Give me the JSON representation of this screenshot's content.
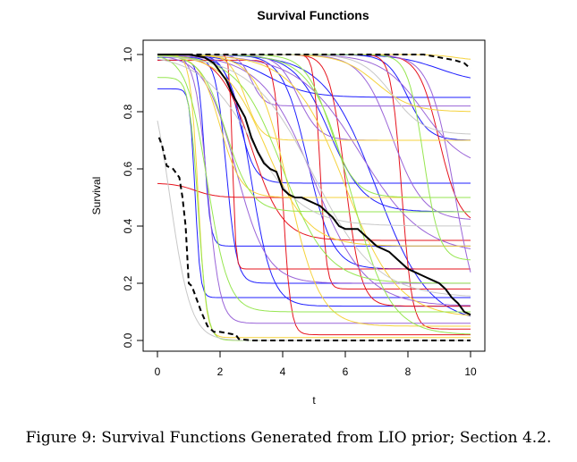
{
  "chart_data": {
    "type": "line",
    "title": "Survival Functions",
    "xlabel": "t",
    "ylabel": "Survival",
    "xlim": [
      0,
      10
    ],
    "ylim": [
      0,
      1
    ],
    "x_ticks": [
      0,
      2,
      4,
      6,
      8,
      10
    ],
    "y_ticks": [
      0.0,
      0.2,
      0.4,
      0.6,
      0.8,
      1.0
    ],
    "y_tick_labels": [
      "0.0",
      "0.2",
      "0.4",
      "0.6",
      "0.8",
      "1.0"
    ],
    "grid": false,
    "legend": "none",
    "colors": {
      "blue": "#1f1fff",
      "red": "#e6141e",
      "purple": "#9a64d8",
      "yellow": "#f5d23c",
      "green": "#96e650",
      "gray": "#c8c8c8",
      "black": "#000000"
    },
    "background_curve_pattern": {
      "description_params": "cy,x50,steep,floor",
      "curves": [
        {
          "c": "blue",
          "x50": 1.2,
          "k": 12,
          "top": 0.88,
          "floor": 0.15
        },
        {
          "c": "blue",
          "x50": 1.5,
          "k": 10,
          "top": 0.98,
          "floor": 0.33
        },
        {
          "c": "blue",
          "x50": 3.0,
          "k": 3,
          "top": 1.0,
          "floor": 0.12
        },
        {
          "c": "blue",
          "x50": 4.8,
          "k": 2.5,
          "top": 1.0,
          "floor": 0.25
        },
        {
          "c": "blue",
          "x50": 7.0,
          "k": 1.2,
          "top": 1.0,
          "floor": 0.06
        },
        {
          "c": "blue",
          "x50": 9.0,
          "k": 1.5,
          "top": 1.0,
          "floor": 0.9
        },
        {
          "c": "blue",
          "x50": 3.5,
          "k": 1.5,
          "top": 1.0,
          "floor": 0.85
        },
        {
          "c": "blue",
          "x50": 2.2,
          "k": 6,
          "top": 0.99,
          "floor": 0.2
        },
        {
          "c": "blue",
          "x50": 5.5,
          "k": 1.8,
          "top": 1.0,
          "floor": 0.45
        },
        {
          "c": "blue",
          "x50": 2.6,
          "k": 4,
          "top": 1.0,
          "floor": 0.55
        },
        {
          "c": "blue",
          "x50": 8.0,
          "k": 3,
          "top": 1.0,
          "floor": 0.7
        },
        {
          "c": "red",
          "x50": 2.4,
          "k": 20,
          "top": 1.0,
          "floor": 0.25
        },
        {
          "c": "red",
          "x50": 6.0,
          "k": 4,
          "top": 1.0,
          "floor": 0.12
        },
        {
          "c": "red",
          "x50": 7.8,
          "k": 6,
          "top": 1.0,
          "floor": 0.04
        },
        {
          "c": "red",
          "x50": 1.2,
          "k": 3,
          "top": 0.55,
          "floor": 0.5
        },
        {
          "c": "red",
          "x50": 9.0,
          "k": 3,
          "top": 1.0,
          "floor": 0.4
        },
        {
          "c": "red",
          "x50": 4.0,
          "k": 8,
          "top": 0.98,
          "floor": 0.02
        },
        {
          "c": "red",
          "x50": 3.0,
          "k": 2,
          "top": 1.0,
          "floor": 0.35
        },
        {
          "c": "red",
          "x50": 5.2,
          "k": 10,
          "top": 1.0,
          "floor": 0.18
        },
        {
          "c": "purple",
          "x50": 1.6,
          "k": 5,
          "top": 1.0,
          "floor": 0.06
        },
        {
          "c": "purple",
          "x50": 5.0,
          "k": 1.2,
          "top": 1.0,
          "floor": 0.12
        },
        {
          "c": "purple",
          "x50": 8.5,
          "k": 1.5,
          "top": 1.0,
          "floor": 0.6
        },
        {
          "c": "purple",
          "x50": 3.0,
          "k": 5,
          "top": 1.0,
          "floor": 0.82
        },
        {
          "c": "purple",
          "x50": 6.5,
          "k": 1.0,
          "top": 1.0,
          "floor": 0.3
        },
        {
          "c": "purple",
          "x50": 2.5,
          "k": 2,
          "top": 1.0,
          "floor": 0.2
        },
        {
          "c": "purple",
          "x50": 9.5,
          "k": 2.5,
          "top": 1.0,
          "floor": 0.02
        },
        {
          "c": "purple",
          "x50": 4.5,
          "k": 3,
          "top": 1.0,
          "floor": 0.7
        },
        {
          "c": "purple",
          "x50": 7.5,
          "k": 2,
          "top": 1.0,
          "floor": 0.42
        },
        {
          "c": "yellow",
          "x50": 1.3,
          "k": 8,
          "top": 1.0,
          "floor": 0.01
        },
        {
          "c": "yellow",
          "x50": 2.0,
          "k": 3,
          "top": 1.0,
          "floor": 0.5
        },
        {
          "c": "yellow",
          "x50": 3.5,
          "k": 1.5,
          "top": 1.0,
          "floor": 0.33
        },
        {
          "c": "yellow",
          "x50": 6.0,
          "k": 1.2,
          "top": 1.0,
          "floor": 0.08
        },
        {
          "c": "yellow",
          "x50": 7.0,
          "k": 1.8,
          "top": 1.0,
          "floor": 0.8
        },
        {
          "c": "yellow",
          "x50": 2.8,
          "k": 4,
          "top": 1.0,
          "floor": 0.7
        },
        {
          "c": "yellow",
          "x50": 9.5,
          "k": 3,
          "top": 1.0,
          "floor": 0.98
        },
        {
          "c": "yellow",
          "x50": 4.2,
          "k": 2,
          "top": 1.0,
          "floor": 0.05
        },
        {
          "c": "green",
          "x50": 1.3,
          "k": 7,
          "top": 0.92,
          "floor": 0.0
        },
        {
          "c": "green",
          "x50": 1.6,
          "k": 3,
          "top": 1.0,
          "floor": 0.1
        },
        {
          "c": "green",
          "x50": 4.0,
          "k": 1.4,
          "top": 1.0,
          "floor": 0.2
        },
        {
          "c": "green",
          "x50": 6.2,
          "k": 1.6,
          "top": 1.0,
          "floor": 0.02
        },
        {
          "c": "green",
          "x50": 2.2,
          "k": 2.5,
          "top": 1.0,
          "floor": 0.45
        },
        {
          "c": "green",
          "x50": 5.5,
          "k": 2.5,
          "top": 1.0,
          "floor": 0.5
        },
        {
          "c": "green",
          "x50": 8.5,
          "k": 4,
          "top": 1.0,
          "floor": 0.28
        },
        {
          "c": "gray",
          "x50": 0.4,
          "k": 3,
          "top": 1.0,
          "floor": 0.0
        },
        {
          "c": "gray",
          "x50": 5.0,
          "k": 1.0,
          "top": 1.0,
          "floor": 0.15
        },
        {
          "c": "gray",
          "x50": 7.5,
          "k": 2,
          "top": 1.0,
          "floor": 0.72
        },
        {
          "c": "gray",
          "x50": 3.0,
          "k": 1.2,
          "top": 1.0,
          "floor": 0.4
        }
      ]
    },
    "series": [
      {
        "color": "black",
        "style": "solid",
        "x": [
          0,
          1.0,
          1.5,
          1.8,
          2.0,
          2.2,
          2.4,
          2.6,
          2.8,
          3.0,
          3.2,
          3.4,
          3.6,
          3.8,
          4.0,
          4.2,
          4.4,
          4.6,
          4.8,
          5.0,
          5.2,
          5.4,
          5.6,
          5.8,
          6.0,
          6.2,
          6.4,
          6.6,
          6.8,
          7.0,
          7.2,
          7.4,
          7.6,
          7.8,
          8.0,
          8.2,
          8.4,
          8.6,
          8.8,
          9.0,
          9.2,
          9.4,
          9.6,
          9.8,
          10.0
        ],
        "y": [
          1.0,
          1.0,
          0.99,
          0.97,
          0.94,
          0.91,
          0.86,
          0.82,
          0.78,
          0.71,
          0.66,
          0.62,
          0.6,
          0.59,
          0.53,
          0.51,
          0.5,
          0.5,
          0.49,
          0.48,
          0.47,
          0.45,
          0.43,
          0.4,
          0.39,
          0.39,
          0.39,
          0.37,
          0.35,
          0.33,
          0.32,
          0.31,
          0.29,
          0.27,
          0.25,
          0.24,
          0.23,
          0.22,
          0.21,
          0.2,
          0.18,
          0.15,
          0.13,
          0.1,
          0.09
        ]
      },
      {
        "color": "black",
        "style": "dashed",
        "x": [
          0.05,
          0.15,
          0.3,
          0.5,
          0.7,
          0.8,
          0.9,
          1.0,
          1.1,
          1.2,
          1.4,
          1.6,
          1.8,
          2.0,
          2.5,
          2.6,
          3.0,
          5.0,
          10.0
        ],
        "y": [
          0.71,
          0.68,
          0.61,
          0.6,
          0.57,
          0.5,
          0.4,
          0.2,
          0.19,
          0.16,
          0.1,
          0.05,
          0.03,
          0.03,
          0.02,
          0.005,
          0.0,
          0.0,
          0.0
        ]
      },
      {
        "color": "black",
        "style": "dashed",
        "x": [
          0.1,
          2.0,
          4.0,
          6.0,
          7.0,
          8.0,
          8.5,
          9.0,
          9.5,
          9.8,
          10.0
        ],
        "y": [
          1.0,
          1.0,
          1.0,
          1.0,
          1.0,
          1.0,
          1.0,
          0.99,
          0.98,
          0.97,
          0.95
        ]
      }
    ]
  },
  "caption": "Figure 9: Survival Functions Generated from LIO prior; Section 4.2."
}
